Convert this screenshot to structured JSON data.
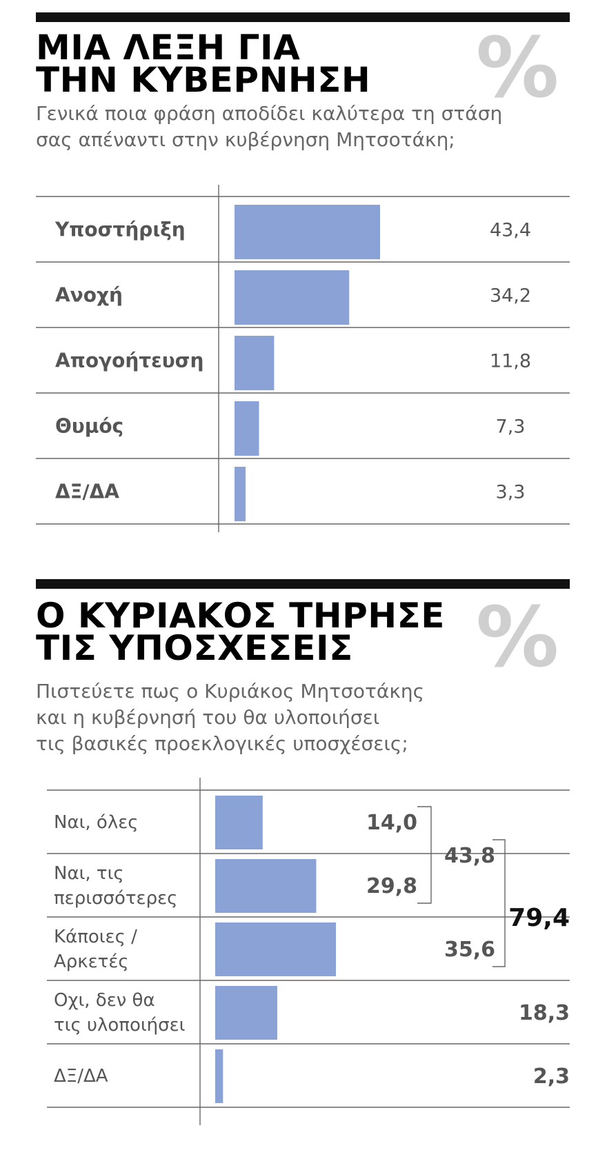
{
  "colors": {
    "bar": "#8aa2d6",
    "rule": "#666666",
    "dark": "#111111",
    "label_gray": "#555555",
    "percent_gray": "#cfcfcf"
  },
  "sections": [
    {
      "title_lines": [
        "ΜΙΑ ΛΕΞΗ ΓΙΑ",
        "ΤΗΝ ΚΥΒΕΡΝΗΣΗ"
      ],
      "subtitle_lines": [
        "Γενικά ποια φράση αποδίδει καλύτερα τη στάση",
        "σας απέναντι στην κυβέρνηση Μητσοτάκη;"
      ],
      "percent_symbol": "%"
    },
    {
      "title_lines": [
        "Ο ΚΥΡΙΑΚΟΣ ΤΗΡΗΣΕ",
        "ΤΙΣ ΥΠΟΣΧΕΣΕΙΣ"
      ],
      "subtitle_lines": [
        "Πιστεύετε πως ο Κυριάκος Μητσοτάκης",
        "και η κυβέρνησή του θα υλοποιήσει",
        "τις βασικές προεκλογικές υποσχέσεις;"
      ],
      "percent_symbol": "%"
    }
  ],
  "chart_data": [
    {
      "type": "bar",
      "orientation": "horizontal",
      "categories": [
        "Υποστήριξη",
        "Ανοχή",
        "Απογοήτευση",
        "Θυμός",
        "ΔΞ/ΔΑ"
      ],
      "values": [
        43.4,
        34.2,
        11.8,
        7.3,
        3.3
      ],
      "value_labels": [
        "43,4",
        "34,2",
        "11,8",
        "7,3",
        "3,3"
      ]
    },
    {
      "type": "bar",
      "orientation": "horizontal",
      "categories": [
        [
          "Ναι, όλες"
        ],
        [
          "Ναι, τις",
          "περισσότερες"
        ],
        [
          "Κάποιες /",
          "Αρκετές"
        ],
        [
          "Οχι, δεν θα",
          "τις υλοποιήσει"
        ],
        [
          "ΔΞ/ΔΑ"
        ]
      ],
      "values": [
        14.0,
        29.8,
        35.6,
        18.3,
        2.3
      ],
      "value_labels": [
        "14,0",
        "29,8",
        "35,6",
        "18,3",
        "2,3"
      ],
      "groups": [
        {
          "label": "43,8",
          "value": 43.8,
          "members": [
            0,
            1
          ]
        },
        {
          "label": "79,4",
          "value": 79.4,
          "members": [
            0,
            1,
            2
          ]
        }
      ]
    }
  ]
}
